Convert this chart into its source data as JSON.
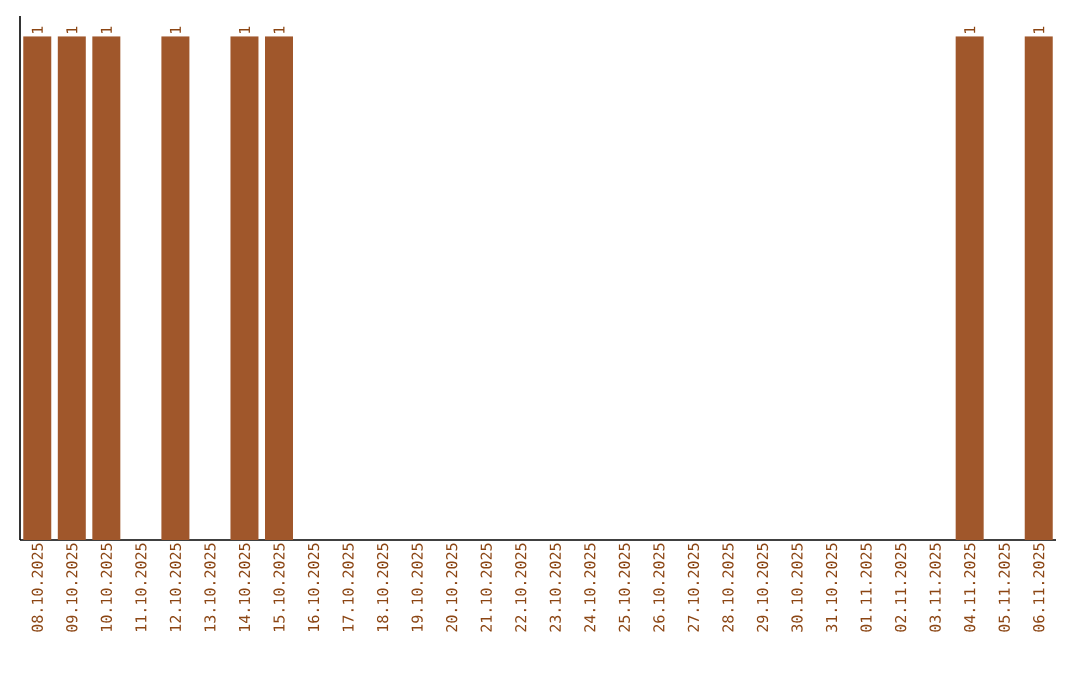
{
  "chart_data": {
    "type": "bar",
    "ylim": [
      0,
      1.04
    ],
    "categories": [
      "08.10.2025",
      "09.10.2025",
      "10.10.2025",
      "11.10.2025",
      "12.10.2025",
      "13.10.2025",
      "14.10.2025",
      "15.10.2025",
      "16.10.2025",
      "17.10.2025",
      "18.10.2025",
      "19.10.2025",
      "20.10.2025",
      "21.10.2025",
      "22.10.2025",
      "23.10.2025",
      "24.10.2025",
      "25.10.2025",
      "26.10.2025",
      "27.10.2025",
      "28.10.2025",
      "29.10.2025",
      "30.10.2025",
      "31.10.2025",
      "01.11.2025",
      "02.11.2025",
      "03.11.2025",
      "04.11.2025",
      "05.11.2025",
      "06.11.2025"
    ],
    "values": [
      1,
      1,
      1,
      0,
      1,
      0,
      1,
      1,
      0,
      0,
      0,
      0,
      0,
      0,
      0,
      0,
      0,
      0,
      0,
      0,
      0,
      0,
      0,
      0,
      0,
      0,
      0,
      1,
      0,
      1
    ],
    "value_labels": [
      "1",
      "1",
      "1",
      null,
      "1",
      null,
      "1",
      "1",
      null,
      null,
      null,
      null,
      null,
      null,
      null,
      null,
      null,
      null,
      null,
      null,
      null,
      null,
      null,
      null,
      null,
      null,
      null,
      "1",
      null,
      "1"
    ],
    "color": "#a0572b"
  }
}
